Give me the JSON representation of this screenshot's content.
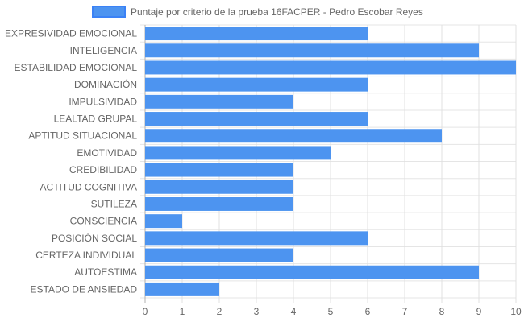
{
  "chart_data": {
    "type": "bar",
    "orientation": "horizontal",
    "title": "",
    "xlabel": "",
    "ylabel": "",
    "xlim": [
      0,
      10
    ],
    "x_ticks": [
      0,
      1,
      2,
      3,
      4,
      5,
      6,
      7,
      8,
      9,
      10
    ],
    "grid": true,
    "legend_position": "top",
    "categories": [
      "EXPRESIVIDAD EMOCIONAL",
      "INTELIGENCIA",
      "ESTABILIDAD EMOCIONAL",
      "DOMINACIÓN",
      "IMPULSIVIDAD",
      "LEALTAD GRUPAL",
      "APTITUD SITUACIONAL",
      "EMOTIVIDAD",
      "CREDIBILIDAD",
      "ACTITUD COGNITIVA",
      "SUTILEZA",
      "CONSCIENCIA",
      "POSICIÓN SOCIAL",
      "CERTEZA INDIVIDUAL",
      "AUTOESTIMA",
      "ESTADO DE ANSIEDAD"
    ],
    "series": [
      {
        "name": "Puntaje por criterio de la prueba 16FACPER - Pedro Escobar Reyes",
        "values": [
          6,
          9,
          10,
          6,
          4,
          6,
          8,
          5,
          4,
          4,
          4,
          1,
          6,
          4,
          9,
          2
        ],
        "fill_color": "#4d94f0",
        "border_color": "#3b82f6"
      }
    ]
  }
}
